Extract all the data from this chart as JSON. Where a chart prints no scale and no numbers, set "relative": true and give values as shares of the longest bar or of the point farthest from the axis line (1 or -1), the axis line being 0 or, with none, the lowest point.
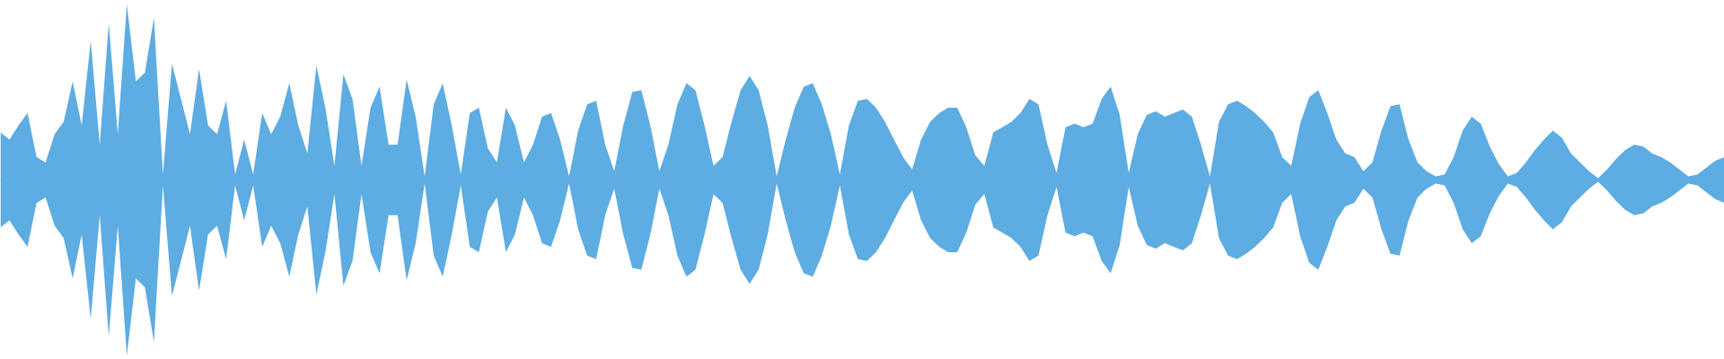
{
  "chart_data": {
    "type": "area",
    "relative": true,
    "grid": false,
    "ref_lines": [
      {
        "axis": "y",
        "value": 0,
        "color": "#5dace2"
      }
    ],
    "categories": [
      null,
      null,
      null,
      null,
      null,
      null,
      null,
      null,
      null,
      null,
      null,
      null,
      null,
      null,
      null,
      null,
      null,
      null,
      null,
      null,
      null,
      null,
      null,
      null,
      null,
      null,
      null,
      null,
      null,
      null,
      null,
      null,
      null,
      null,
      null,
      null,
      null,
      null,
      null,
      null,
      null,
      null,
      null,
      null,
      null,
      null,
      null,
      null,
      null,
      null,
      null,
      null,
      null,
      null,
      null,
      null,
      null,
      null,
      null,
      null,
      null,
      null,
      null,
      null,
      null,
      null,
      null,
      null,
      null,
      null,
      null,
      null,
      null,
      null,
      null,
      null,
      null,
      null,
      null,
      null,
      null,
      null,
      null,
      null,
      null,
      null,
      null,
      null,
      null,
      null,
      null,
      null,
      null,
      null,
      null,
      null,
      null,
      null,
      null,
      null,
      null,
      null,
      null,
      null,
      null,
      null,
      null,
      null,
      null,
      null,
      null,
      null,
      null,
      null,
      null,
      null,
      null,
      null,
      null,
      null,
      null,
      null,
      null,
      null,
      null,
      null,
      null,
      null,
      null,
      null,
      null,
      null,
      null,
      null,
      null,
      null,
      null,
      null,
      null,
      null,
      null,
      null,
      null,
      null,
      null,
      null,
      null,
      null,
      null,
      null,
      null,
      null,
      null,
      null,
      null,
      null,
      null,
      null,
      null,
      null,
      null,
      null,
      null,
      null,
      null,
      null,
      null,
      null,
      null,
      null,
      null,
      null,
      null,
      null,
      null,
      null,
      null,
      null,
      null,
      null,
      null,
      null,
      null,
      null,
      null,
      null,
      null,
      null,
      null,
      null,
      null,
      null
    ],
    "series": [
      {
        "color": "#5dace2",
        "values": [
          0.27,
          0.23,
          0.31,
          0.38,
          0.13,
          0.1,
          0.26,
          0.33,
          0.56,
          0.31,
          0.79,
          0.2,
          0.89,
          0.26,
          1,
          0.56,
          0.61,
          0.92,
          0.03,
          0.66,
          0.46,
          0.26,
          0.63,
          0.31,
          0.26,
          0.45,
          0.03,
          0.23,
          0.03,
          0.38,
          0.26,
          0.36,
          0.55,
          0.31,
          0.15,
          0.65,
          0.41,
          0.08,
          0.6,
          0.46,
          0.08,
          0.41,
          0.53,
          0.2,
          0.2,
          0.57,
          0.36,
          0.02,
          0.43,
          0.55,
          0.31,
          0.03,
          0.38,
          0.41,
          0.18,
          0.1,
          0.41,
          0.31,
          0.1,
          0.2,
          0.36,
          0.38,
          0.23,
          0.02,
          0.28,
          0.43,
          0.45,
          0.2,
          0.05,
          0.31,
          0.5,
          0.51,
          0.31,
          0.05,
          0.2,
          0.43,
          0.55,
          0.51,
          0.31,
          0.08,
          0.13,
          0.33,
          0.51,
          0.59,
          0.51,
          0.31,
          0.02,
          0.23,
          0.41,
          0.53,
          0.55,
          0.43,
          0.26,
          0.03,
          0.31,
          0.45,
          0.46,
          0.41,
          0.33,
          0.23,
          0.13,
          0.06,
          0.23,
          0.33,
          0.38,
          0.41,
          0.41,
          0.3,
          0.14,
          0.08,
          0.27,
          0.3,
          0.33,
          0.38,
          0.46,
          0.43,
          0.2,
          0.04,
          0.3,
          0.32,
          0.3,
          0.32,
          0.46,
          0.53,
          0.37,
          0.04,
          0.26,
          0.37,
          0.39,
          0.36,
          0.38,
          0.4,
          0.36,
          0.2,
          0.02,
          0.33,
          0.43,
          0.45,
          0.42,
          0.38,
          0.33,
          0.27,
          0.13,
          0.08,
          0.32,
          0.47,
          0.51,
          0.38,
          0.23,
          0.15,
          0.13,
          0.05,
          0.1,
          0.28,
          0.42,
          0.43,
          0.23,
          0.1,
          0.05,
          0.02,
          0.03,
          0.13,
          0.28,
          0.36,
          0.32,
          0.19,
          0.09,
          0.02,
          0.04,
          0.1,
          0.17,
          0.23,
          0.28,
          0.24,
          0.15,
          0.1,
          0.05,
          0.01,
          0.06,
          0.12,
          0.17,
          0.2,
          0.19,
          0.15,
          0.13,
          0.1,
          0.06,
          0.02,
          0.03,
          0.07,
          0.11,
          0.13
        ]
      },
      {
        "color": "#5dace2",
        "values": [
          -0.27,
          -0.23,
          -0.31,
          -0.38,
          -0.13,
          -0.1,
          -0.26,
          -0.33,
          -0.56,
          -0.31,
          -0.79,
          -0.2,
          -0.89,
          -0.26,
          -1,
          -0.56,
          -0.61,
          -0.92,
          -0.03,
          -0.66,
          -0.46,
          -0.26,
          -0.63,
          -0.31,
          -0.26,
          -0.45,
          -0.03,
          -0.23,
          -0.03,
          -0.38,
          -0.26,
          -0.36,
          -0.55,
          -0.31,
          -0.15,
          -0.65,
          -0.41,
          -0.08,
          -0.6,
          -0.46,
          -0.08,
          -0.41,
          -0.53,
          -0.2,
          -0.2,
          -0.57,
          -0.36,
          -0.02,
          -0.43,
          -0.55,
          -0.31,
          -0.03,
          -0.38,
          -0.41,
          -0.18,
          -0.1,
          -0.41,
          -0.31,
          -0.1,
          -0.2,
          -0.36,
          -0.38,
          -0.23,
          -0.02,
          -0.28,
          -0.43,
          -0.45,
          -0.2,
          -0.05,
          -0.31,
          -0.5,
          -0.51,
          -0.31,
          -0.05,
          -0.2,
          -0.43,
          -0.55,
          -0.51,
          -0.31,
          -0.08,
          -0.13,
          -0.33,
          -0.51,
          -0.59,
          -0.51,
          -0.31,
          -0.02,
          -0.23,
          -0.41,
          -0.53,
          -0.55,
          -0.43,
          -0.26,
          -0.03,
          -0.31,
          -0.45,
          -0.46,
          -0.41,
          -0.33,
          -0.23,
          -0.13,
          -0.06,
          -0.23,
          -0.33,
          -0.38,
          -0.41,
          -0.41,
          -0.3,
          -0.14,
          -0.08,
          -0.27,
          -0.3,
          -0.33,
          -0.38,
          -0.46,
          -0.43,
          -0.2,
          -0.04,
          -0.3,
          -0.32,
          -0.3,
          -0.32,
          -0.46,
          -0.53,
          -0.37,
          -0.04,
          -0.26,
          -0.37,
          -0.39,
          -0.36,
          -0.38,
          -0.4,
          -0.36,
          -0.2,
          -0.02,
          -0.33,
          -0.43,
          -0.45,
          -0.42,
          -0.38,
          -0.33,
          -0.27,
          -0.13,
          -0.08,
          -0.32,
          -0.47,
          -0.51,
          -0.38,
          -0.23,
          -0.15,
          -0.13,
          -0.05,
          -0.1,
          -0.28,
          -0.42,
          -0.43,
          -0.23,
          -0.1,
          -0.05,
          -0.02,
          -0.03,
          -0.13,
          -0.28,
          -0.36,
          -0.32,
          -0.19,
          -0.09,
          -0.02,
          -0.04,
          -0.1,
          -0.17,
          -0.23,
          -0.28,
          -0.24,
          -0.15,
          -0.1,
          -0.05,
          -0.01,
          -0.06,
          -0.12,
          -0.17,
          -0.2,
          -0.19,
          -0.15,
          -0.13,
          -0.1,
          -0.06,
          -0.02,
          -0.03,
          -0.07,
          -0.11,
          -0.13
        ]
      }
    ]
  }
}
